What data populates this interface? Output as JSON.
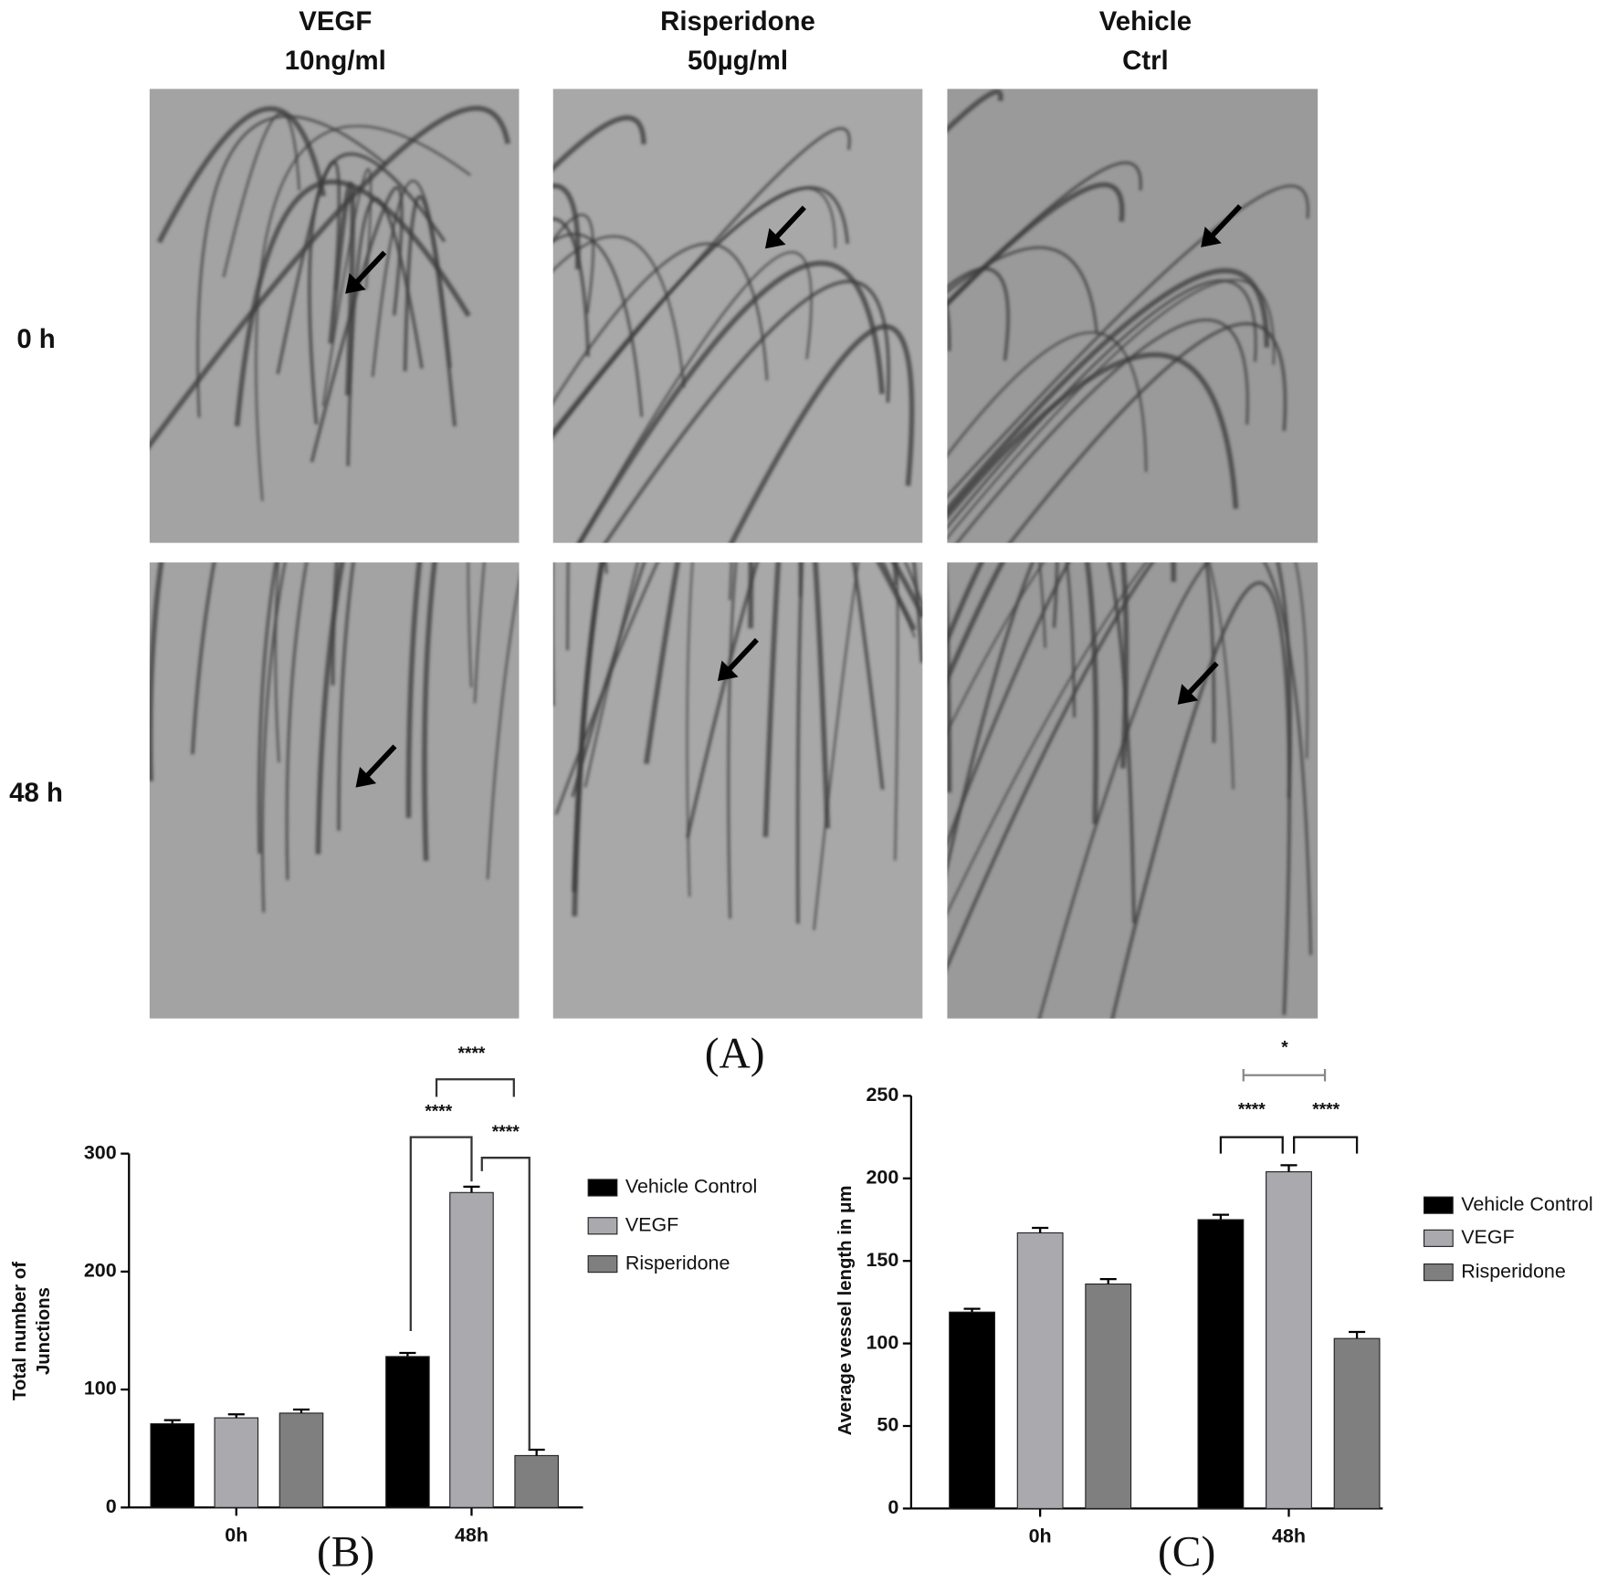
{
  "panel_a": {
    "columns": [
      [
        "VEGF",
        "10ng/ml"
      ],
      [
        "Risperidone",
        "50µg/ml"
      ],
      [
        "Vehicle",
        "Ctrl"
      ]
    ],
    "rows": [
      "0 h",
      "48 h"
    ],
    "label": "(A)"
  },
  "chart_data": [
    {
      "type": "bar",
      "panel_label": "(B)",
      "ylabel": [
        "Total number of",
        "Junctions"
      ],
      "categories": [
        "0h",
        "48h"
      ],
      "series": [
        {
          "name": "Vehicle Control",
          "color": "#000000",
          "values": [
            71,
            128
          ],
          "errors": [
            3,
            3
          ]
        },
        {
          "name": "VEGF",
          "color": "#a9a9ae",
          "values": [
            76,
            267
          ],
          "errors": [
            3,
            5
          ]
        },
        {
          "name": "Risperidone",
          "color": "#7f7f7f",
          "values": [
            80,
            44
          ],
          "errors": [
            3,
            5
          ]
        }
      ],
      "ylim": [
        0,
        300
      ],
      "yticks": [
        0,
        100,
        200,
        300
      ],
      "annotations": [
        "****",
        "****",
        "****"
      ]
    },
    {
      "type": "bar",
      "panel_label": "(C)",
      "ylabel": [
        "Average vessel length in μm"
      ],
      "categories": [
        "0h",
        "48h"
      ],
      "series": [
        {
          "name": "Vehicle Control",
          "color": "#000000",
          "values": [
            119,
            175
          ],
          "errors": [
            2,
            3
          ]
        },
        {
          "name": "VEGF",
          "color": "#a9a9ae",
          "values": [
            167,
            204
          ],
          "errors": [
            3,
            4
          ]
        },
        {
          "name": "Risperidone",
          "color": "#7f7f7f",
          "values": [
            136,
            103
          ],
          "errors": [
            3,
            4
          ]
        }
      ],
      "ylim": [
        0,
        250
      ],
      "yticks": [
        0,
        50,
        100,
        150,
        200,
        250
      ],
      "annotations": [
        "*",
        "****",
        "****"
      ]
    }
  ]
}
